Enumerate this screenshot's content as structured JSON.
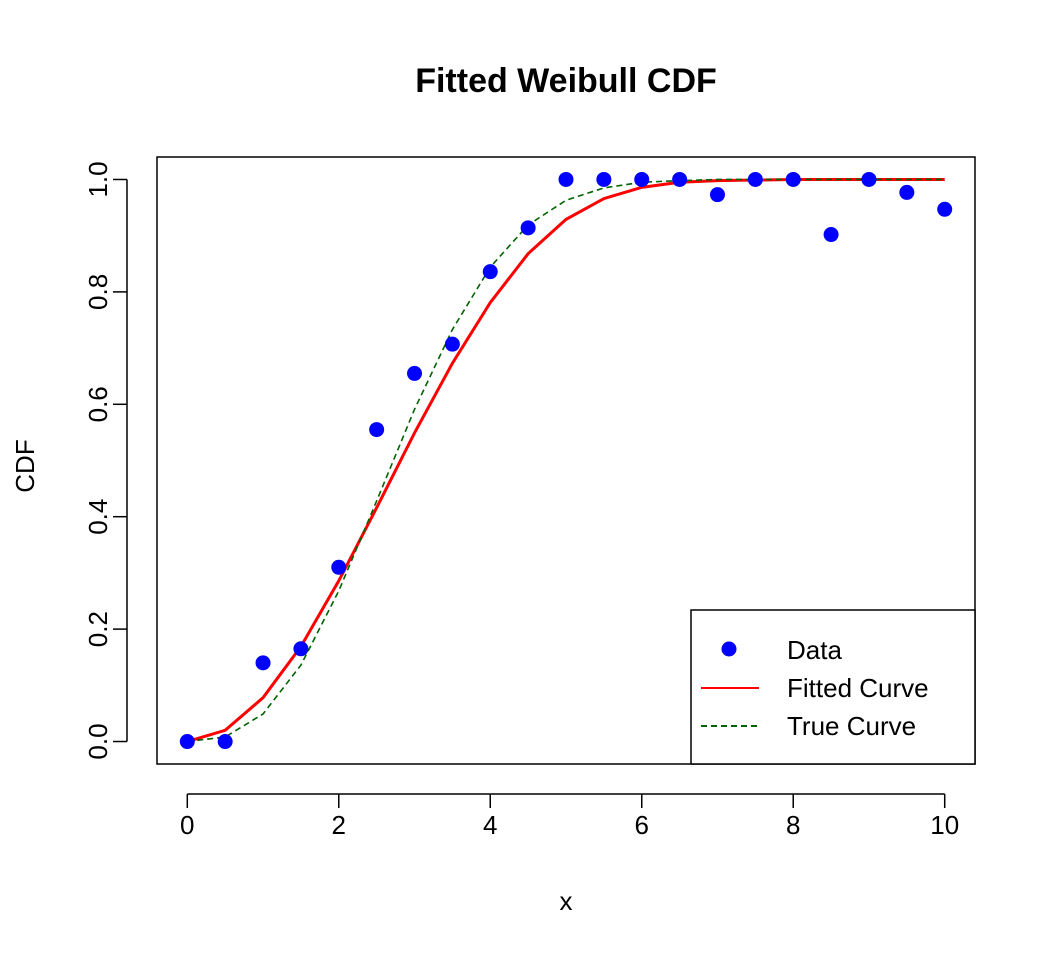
{
  "chart_data": {
    "type": "scatter",
    "title": "Fitted Weibull CDF",
    "xlabel": "x",
    "ylabel": "CDF",
    "xlim": [
      -0.4,
      10.4
    ],
    "ylim": [
      -0.04,
      1.04
    ],
    "xticks": [
      0,
      2,
      4,
      6,
      8,
      10
    ],
    "yticks": [
      0.0,
      0.2,
      0.4,
      0.6,
      0.8,
      1.0
    ],
    "xtick_labels": [
      "0",
      "2",
      "4",
      "6",
      "8",
      "10"
    ],
    "ytick_labels": [
      "0.0",
      "0.2",
      "0.4",
      "0.6",
      "0.8",
      "1.0"
    ],
    "grid": false,
    "legend_position": "bottom-right",
    "series": [
      {
        "name": "Data",
        "kind": "points",
        "color": "#0000ff",
        "x": [
          0,
          0.5,
          1,
          1.5,
          2,
          2.5,
          3,
          3.5,
          4,
          4.5,
          5,
          5.5,
          6,
          6.5,
          7,
          7.5,
          8,
          8.5,
          9,
          9.5,
          10
        ],
        "y": [
          0.0,
          0.0,
          0.14,
          0.165,
          0.31,
          0.555,
          0.655,
          0.707,
          0.836,
          0.914,
          1.0,
          1.0,
          1.0,
          1.0,
          0.973,
          1.0,
          1.0,
          0.902,
          1.0,
          0.977,
          0.947
        ]
      },
      {
        "name": "Fitted Curve",
        "kind": "line",
        "color": "#ff0000",
        "dash": "solid",
        "x": [
          0,
          0.5,
          1,
          1.5,
          2,
          2.5,
          3,
          3.5,
          4,
          4.5,
          5,
          5.5,
          6,
          6.5,
          7,
          8,
          9,
          10
        ],
        "y": [
          0.0,
          0.02,
          0.078,
          0.169,
          0.286,
          0.416,
          0.549,
          0.673,
          0.781,
          0.868,
          0.929,
          0.966,
          0.986,
          0.995,
          0.998,
          1.0,
          1.0,
          1.0
        ]
      },
      {
        "name": "True Curve",
        "kind": "line",
        "color": "#006400",
        "dash": "dashed",
        "x": [
          0,
          0.5,
          1,
          1.5,
          2,
          2.5,
          3,
          3.5,
          4,
          4.5,
          5,
          5.5,
          6,
          6.5,
          7,
          8,
          9,
          10
        ],
        "y": [
          0.0,
          0.008,
          0.049,
          0.136,
          0.268,
          0.428,
          0.591,
          0.733,
          0.844,
          0.919,
          0.963,
          0.985,
          0.995,
          0.998,
          1.0,
          1.0,
          1.0,
          1.0
        ]
      }
    ]
  }
}
